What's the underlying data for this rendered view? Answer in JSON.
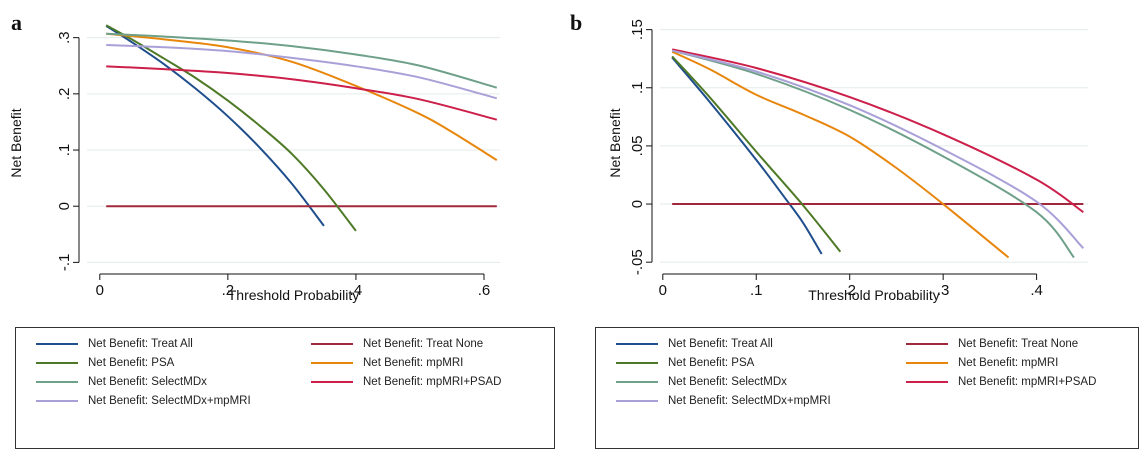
{
  "panels": [
    {
      "letter": "a",
      "chart_data": {
        "type": "line",
        "title": "",
        "xlabel": "Threshold Probability",
        "ylabel": "Net Benefit",
        "xlim": [
          -0.02,
          0.625
        ],
        "ylim": [
          -0.11,
          0.335
        ],
        "xticks": [
          0,
          0.2,
          0.4,
          0.6
        ],
        "xtick_labels": [
          "0",
          ".2",
          ".4",
          ".6"
        ],
        "yticks": [
          -0.1,
          0,
          0.1,
          0.2,
          0.3
        ],
        "ytick_labels": [
          "-.1",
          "0",
          ".1",
          ".2",
          ".3"
        ],
        "grid": "horizontal",
        "legend_position": "bottom",
        "series": [
          {
            "name": "Net Benefit: Treat All",
            "color": "#1f4e8c",
            "points": [
              [
                0.01,
                0.321
              ],
              [
                0.05,
                0.292
              ],
              [
                0.1,
                0.253
              ],
              [
                0.15,
                0.209
              ],
              [
                0.2,
                0.16
              ],
              [
                0.25,
                0.104
              ],
              [
                0.3,
                0.04
              ],
              [
                0.35,
                -0.035
              ]
            ]
          },
          {
            "name": "Net Benefit: Treat None",
            "color": "#a0283c",
            "points": [
              [
                0.01,
                0.0
              ],
              [
                0.62,
                0.0
              ]
            ]
          },
          {
            "name": "Net Benefit: PSA",
            "color": "#4e7a27",
            "points": [
              [
                0.01,
                0.322
              ],
              [
                0.05,
                0.297
              ],
              [
                0.1,
                0.263
              ],
              [
                0.15,
                0.228
              ],
              [
                0.2,
                0.188
              ],
              [
                0.25,
                0.143
              ],
              [
                0.3,
                0.093
              ],
              [
                0.35,
                0.03
              ],
              [
                0.4,
                -0.044
              ]
            ]
          },
          {
            "name": "Net Benefit: mpMRI",
            "color": "#e8860c",
            "points": [
              [
                0.01,
                0.307
              ],
              [
                0.1,
                0.297
              ],
              [
                0.2,
                0.283
              ],
              [
                0.3,
                0.257
              ],
              [
                0.4,
                0.214
              ],
              [
                0.5,
                0.164
              ],
              [
                0.55,
                0.132
              ],
              [
                0.62,
                0.082
              ]
            ]
          },
          {
            "name": "Net Benefit: SelectMDx",
            "color": "#6fa08a",
            "points": [
              [
                0.01,
                0.307
              ],
              [
                0.1,
                0.302
              ],
              [
                0.2,
                0.295
              ],
              [
                0.3,
                0.285
              ],
              [
                0.4,
                0.27
              ],
              [
                0.5,
                0.25
              ],
              [
                0.62,
                0.211
              ]
            ]
          },
          {
            "name": "Net Benefit: mpMRI+PSAD",
            "color": "#cc1f4a",
            "points": [
              [
                0.01,
                0.249
              ],
              [
                0.1,
                0.244
              ],
              [
                0.2,
                0.237
              ],
              [
                0.3,
                0.226
              ],
              [
                0.4,
                0.21
              ],
              [
                0.5,
                0.19
              ],
              [
                0.62,
                0.154
              ]
            ]
          },
          {
            "name": "Net Benefit: SelectMDx+mpMRI",
            "color": "#a9a0d8",
            "points": [
              [
                0.01,
                0.287
              ],
              [
                0.1,
                0.283
              ],
              [
                0.2,
                0.276
              ],
              [
                0.3,
                0.264
              ],
              [
                0.4,
                0.249
              ],
              [
                0.5,
                0.229
              ],
              [
                0.62,
                0.192
              ]
            ]
          }
        ]
      }
    },
    {
      "letter": "b",
      "chart_data": {
        "type": "line",
        "title": "",
        "xlabel": "Threshold Probability",
        "ylabel": "Net Benefit",
        "xlim": [
          -0.003,
          0.455
        ],
        "ylim": [
          -0.055,
          0.16
        ],
        "xticks": [
          0,
          0.1,
          0.2,
          0.3,
          0.4
        ],
        "xtick_labels": [
          "0",
          ".1",
          ".2",
          ".3",
          ".4"
        ],
        "yticks": [
          -0.05,
          0,
          0.05,
          0.1,
          0.15
        ],
        "ytick_labels": [
          "-.05",
          "0",
          ".05",
          ".1",
          ".15"
        ],
        "grid": "horizontal",
        "legend_position": "bottom",
        "series": [
          {
            "name": "Net Benefit: Treat All",
            "color": "#1f4e8c",
            "points": [
              [
                0.01,
                0.126
              ],
              [
                0.05,
                0.088
              ],
              [
                0.1,
                0.038
              ],
              [
                0.13,
                0.006
              ],
              [
                0.15,
                -0.016
              ],
              [
                0.17,
                -0.043
              ]
            ]
          },
          {
            "name": "Net Benefit: Treat None",
            "color": "#a0283c",
            "points": [
              [
                0.01,
                0.0
              ],
              [
                0.45,
                0.0
              ]
            ]
          },
          {
            "name": "Net Benefit: PSA",
            "color": "#4e7a27",
            "points": [
              [
                0.01,
                0.127
              ],
              [
                0.05,
                0.092
              ],
              [
                0.1,
                0.045
              ],
              [
                0.15,
                -0.001
              ],
              [
                0.19,
                -0.041
              ]
            ]
          },
          {
            "name": "Net Benefit: mpMRI",
            "color": "#e8860c",
            "points": [
              [
                0.01,
                0.131
              ],
              [
                0.05,
                0.116
              ],
              [
                0.1,
                0.094
              ],
              [
                0.15,
                0.077
              ],
              [
                0.2,
                0.058
              ],
              [
                0.25,
                0.031
              ],
              [
                0.3,
                0.0
              ],
              [
                0.37,
                -0.046
              ]
            ]
          },
          {
            "name": "Net Benefit: SelectMDx",
            "color": "#6fa08a",
            "points": [
              [
                0.01,
                0.132
              ],
              [
                0.1,
                0.112
              ],
              [
                0.2,
                0.081
              ],
              [
                0.3,
                0.041
              ],
              [
                0.4,
                -0.007
              ],
              [
                0.44,
                -0.046
              ]
            ]
          },
          {
            "name": "Net Benefit: mpMRI+PSAD",
            "color": "#cc1f4a",
            "points": [
              [
                0.01,
                0.133
              ],
              [
                0.1,
                0.117
              ],
              [
                0.2,
                0.092
              ],
              [
                0.3,
                0.06
              ],
              [
                0.4,
                0.021
              ],
              [
                0.45,
                -0.007
              ]
            ]
          },
          {
            "name": "Net Benefit: SelectMDx+mpMRI",
            "color": "#a9a0d8",
            "points": [
              [
                0.01,
                0.132
              ],
              [
                0.1,
                0.114
              ],
              [
                0.2,
                0.085
              ],
              [
                0.3,
                0.047
              ],
              [
                0.4,
                0.002
              ],
              [
                0.45,
                -0.038
              ]
            ]
          }
        ]
      }
    }
  ]
}
